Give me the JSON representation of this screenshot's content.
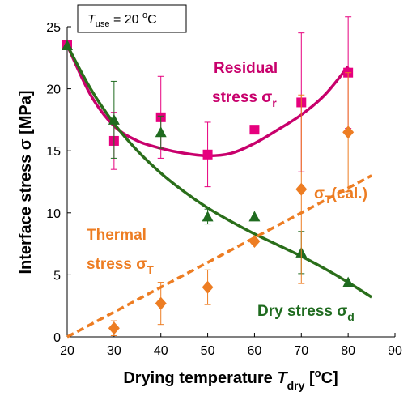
{
  "chart_data": {
    "type": "scatter",
    "x": [
      20,
      30,
      40,
      50,
      60,
      70,
      80
    ],
    "series": [
      {
        "name": "Residual stress",
        "color": "#e6007e",
        "marker": "square",
        "values": [
          23.5,
          15.8,
          17.7,
          14.7,
          16.7,
          18.9,
          21.3
        ],
        "errors": [
          null,
          2.3,
          3.3,
          2.6,
          null,
          5.6,
          4.5
        ]
      },
      {
        "name": "Dry stress",
        "color": "#1f6b1f",
        "marker": "triangle",
        "values": [
          23.5,
          17.5,
          16.5,
          9.7,
          9.7,
          6.8,
          4.4
        ],
        "errors": [
          null,
          3.1,
          1.3,
          0.6,
          null,
          1.7,
          null
        ]
      },
      {
        "name": "Thermal stress",
        "color": "#ed7d23",
        "marker": "diamond",
        "values": [
          null,
          0.7,
          2.7,
          4.0,
          7.7,
          11.9,
          16.5
        ],
        "errors": [
          null,
          0.6,
          1.7,
          1.4,
          null,
          7.6,
          4.8
        ]
      }
    ],
    "fits": [
      {
        "color": "#c8006c",
        "dash": false,
        "x": [
          20,
          25,
          30,
          35,
          40,
          45,
          50,
          55,
          60,
          65,
          70,
          75,
          80
        ],
        "values": [
          23.5,
          19.5,
          17.0,
          15.8,
          15.2,
          14.8,
          14.6,
          14.8,
          15.6,
          16.7,
          17.9,
          19.5,
          21.8
        ]
      },
      {
        "color": "#2a6e1a",
        "dash": false,
        "x": [
          20,
          25,
          30,
          35,
          40,
          45,
          50,
          55,
          60,
          65,
          70,
          75,
          80,
          85
        ],
        "values": [
          23.5,
          20.0,
          17.2,
          15.0,
          13.2,
          11.7,
          10.4,
          9.3,
          8.3,
          7.4,
          6.5,
          5.5,
          4.4,
          3.2
        ]
      },
      {
        "color": "#ed7d23",
        "dash": true,
        "x": [
          20,
          85
        ],
        "values": [
          0,
          13
        ]
      }
    ],
    "xlim": [
      20,
      90
    ],
    "xticks": [
      20,
      30,
      40,
      50,
      60,
      70,
      80,
      90
    ],
    "ylim": [
      0,
      25
    ],
    "yticks": [
      0,
      5,
      10,
      15,
      20,
      25
    ],
    "ylabel": {
      "text": "Interface stress σ [MPa]"
    },
    "xlabel": {
      "text": "Drying temperature ",
      "symbol": "T",
      "sub": "dry",
      "pre": " [",
      "sup": "o",
      "post": "C]"
    },
    "annotations": {
      "use_temp": {
        "symbol": "T",
        "sub": "use",
        "text": " = 20 ",
        "sup": "o",
        "unit": "C"
      },
      "residual": {
        "line1": "Residual",
        "line2": "stress σ",
        "sub": "r"
      },
      "thermal": {
        "line1": "Thermal",
        "line2": "stress σ",
        "sub": "T"
      },
      "calc": {
        "text": "σ",
        "sub": "T",
        "post": "(cal.)"
      },
      "dry": {
        "text": "Dry stress σ",
        "sub": "d"
      }
    }
  }
}
